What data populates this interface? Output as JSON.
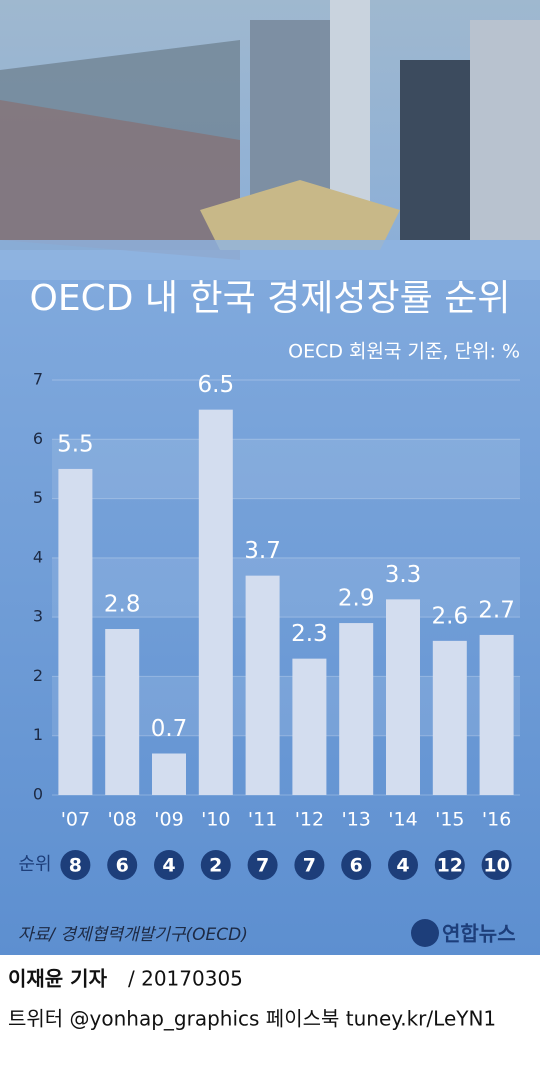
{
  "chart_data": {
    "type": "bar",
    "title": "OECD 내 한국 경제성장률 순위",
    "subtitle": "OECD 회원국 기준, 단위: %",
    "categories": [
      "'07",
      "'08",
      "'09",
      "'10",
      "'11",
      "'12",
      "'13",
      "'14",
      "'15",
      "'16"
    ],
    "values": [
      5.5,
      2.8,
      0.7,
      6.5,
      3.7,
      2.3,
      2.9,
      3.3,
      2.6,
      2.7
    ],
    "color": "#d3ddef",
    "ylim": [
      0,
      7
    ],
    "yticks": [
      0,
      1,
      2,
      3,
      4,
      5,
      6,
      7
    ],
    "grid": true,
    "rank_label": "순위",
    "ranks": [
      8,
      6,
      4,
      2,
      7,
      7,
      6,
      4,
      12,
      10
    ],
    "source": "자료/ 경제협력개발기구(OECD)",
    "logo": "연합뉴스"
  },
  "footer": {
    "byline": "이재윤 기자",
    "date": "/ 20170305",
    "social": "트위터 @yonhap_graphics  페이스북 tuney.kr/LeYN1"
  }
}
